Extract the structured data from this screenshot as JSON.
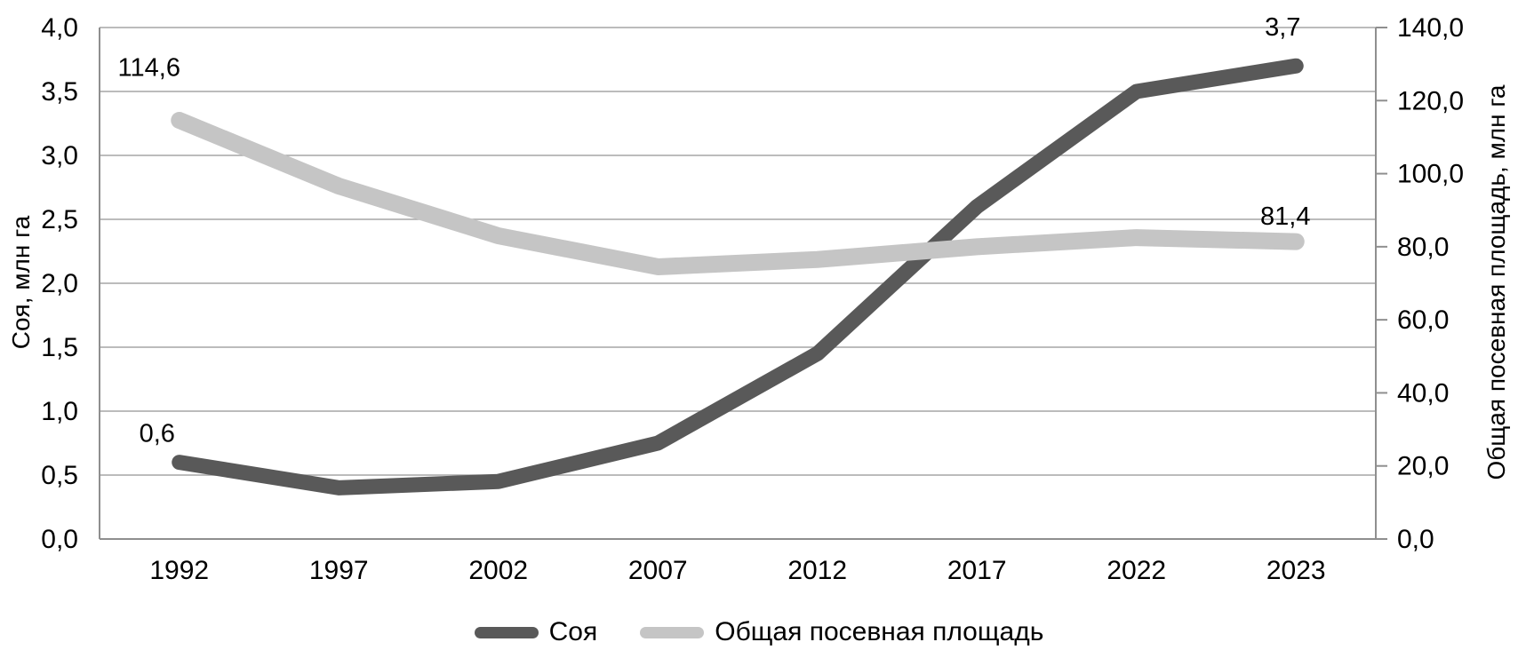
{
  "chart_data": {
    "type": "line",
    "title": "",
    "categories": [
      "1992",
      "1997",
      "2002",
      "2007",
      "2012",
      "2017",
      "2022",
      "2023"
    ],
    "series": [
      {
        "name": "Соя",
        "axis": "left",
        "color": "#595959",
        "values": [
          0.6,
          0.4,
          0.45,
          0.75,
          1.45,
          2.6,
          3.5,
          3.7
        ]
      },
      {
        "name": "Общая посевная площадь",
        "axis": "right",
        "color": "#c5c5c5",
        "values": [
          114.6,
          96.6,
          83,
          74.5,
          76.5,
          80,
          82.5,
          81.4
        ]
      }
    ],
    "left_axis": {
      "label": "Соя, млн га",
      "min": 0,
      "max": 4,
      "tick_labels_top_to_bottom": [
        "4,0",
        "3,5",
        "3,0",
        "2,5",
        "2,0",
        "1,5",
        "1,0",
        "0,5",
        "0,0"
      ]
    },
    "right_axis": {
      "label": "Общая посевная площадь, млн га",
      "min": 0,
      "max": 140,
      "tick_labels_top_to_bottom": [
        "140,0",
        "120,0",
        "100,0",
        "80,0",
        "60,0",
        "40,0",
        "20,0",
        "0,0"
      ]
    },
    "point_labels": [
      {
        "series": 0,
        "index": 0,
        "text": "0,6"
      },
      {
        "series": 0,
        "index": 7,
        "text": "3,7"
      },
      {
        "series": 1,
        "index": 0,
        "text": "114,6"
      },
      {
        "series": 1,
        "index": 7,
        "text": "81,4"
      }
    ],
    "legend": {
      "position": "bottom",
      "items": [
        "Соя",
        "Общая посевная площадь"
      ]
    },
    "grid": true,
    "colors": {
      "gridline": "#a6a6a6",
      "axis_line": "#8f8f8f",
      "text": "#000000"
    }
  }
}
